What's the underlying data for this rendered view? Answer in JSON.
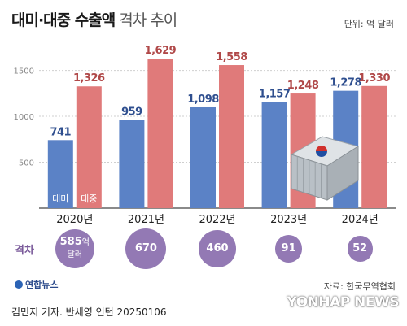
{
  "header": {
    "title_bold": "대미·대중 수출액",
    "title_light": "격차 추이",
    "unit": "단위: 억 달러"
  },
  "chart_data": {
    "type": "bar",
    "categories": [
      "2020년",
      "2021년",
      "2022년",
      "2023년",
      "2024년"
    ],
    "series": [
      {
        "name": "대미",
        "values": [
          741,
          959,
          1098,
          1157,
          1278
        ],
        "color": "#5b82c6"
      },
      {
        "name": "대중",
        "values": [
          1326,
          1629,
          1558,
          1248,
          1330
        ],
        "color": "#e07a7a"
      }
    ],
    "y_ticks": [
      500,
      1000,
      1500
    ],
    "ylim": [
      0,
      1700
    ],
    "value_labels": {
      "대미": [
        "741",
        "959",
        "1,098",
        "1,157",
        "1,278"
      ],
      "대중": [
        "1,326",
        "1,629",
        "1,558",
        "1,248",
        "1,330"
      ]
    },
    "grid": true
  },
  "gap": {
    "label": "격차",
    "values": [
      585,
      670,
      460,
      91,
      52
    ],
    "labels": [
      "585",
      "670",
      "460",
      "91",
      "52"
    ],
    "first_unit": "억 달러"
  },
  "footer": {
    "logo": "연합뉴스",
    "source": "자료: 한국무역협회",
    "credit": "김민지 기자. 반세영 인턴  20250106",
    "watermark": "YONHAP NEWS"
  }
}
